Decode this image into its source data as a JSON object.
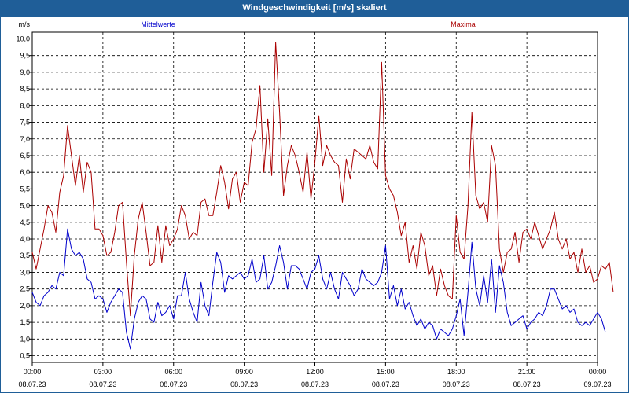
{
  "window": {
    "title": "Windgeschwindigkeit [m/s] skaliert"
  },
  "chart_data": {
    "type": "line",
    "title": "Windgeschwindigkeit [m/s] skaliert",
    "ylabel": "m/s",
    "ylim": [
      0.3,
      10.2
    ],
    "yticks": [
      "0,5",
      "1,0",
      "1,5",
      "2,0",
      "2,5",
      "3,0",
      "3,5",
      "4,0",
      "4,5",
      "5,0",
      "5,5",
      "6,0",
      "6,5",
      "7,0",
      "7,5",
      "8,0",
      "8,5",
      "9,0",
      "9,5",
      "10,0"
    ],
    "xlim_hours": [
      0,
      24
    ],
    "xticks": [
      {
        "time": "00:00",
        "date": "08.07.23"
      },
      {
        "time": "03:00",
        "date": "08.07.23"
      },
      {
        "time": "06:00",
        "date": "08.07.23"
      },
      {
        "time": "09:00",
        "date": "08.07.23"
      },
      {
        "time": "12:00",
        "date": "08.07.23"
      },
      {
        "time": "15:00",
        "date": "08.07.23"
      },
      {
        "time": "18:00",
        "date": "08.07.23"
      },
      {
        "time": "21:00",
        "date": "08.07.23"
      },
      {
        "time": "00:00",
        "date": "09.07.23"
      }
    ],
    "grid": true,
    "interval_minutes": 10,
    "series": [
      {
        "name": "Mittelwerte",
        "color": "#0000cc",
        "values": [
          2.4,
          2.1,
          2.0,
          2.3,
          2.4,
          2.6,
          2.5,
          3.0,
          2.9,
          4.3,
          3.7,
          3.5,
          3.6,
          3.4,
          2.8,
          2.7,
          2.2,
          2.3,
          2.2,
          1.8,
          2.1,
          2.3,
          2.5,
          2.4,
          1.2,
          0.7,
          1.6,
          2.1,
          2.3,
          2.2,
          1.6,
          1.5,
          2.1,
          1.7,
          1.8,
          2.0,
          1.6,
          2.3,
          2.3,
          3.0,
          2.2,
          1.8,
          1.5,
          2.7,
          2.0,
          1.7,
          2.7,
          3.6,
          3.3,
          2.4,
          2.9,
          2.8,
          2.9,
          3.0,
          2.8,
          2.9,
          3.4,
          2.7,
          2.8,
          3.5,
          2.5,
          2.7,
          3.2,
          3.8,
          3.3,
          2.5,
          3.2,
          3.2,
          3.1,
          2.8,
          2.5,
          3.0,
          3.1,
          3.5,
          2.8,
          2.5,
          3.0,
          2.5,
          2.2,
          3.0,
          2.8,
          2.6,
          2.3,
          2.5,
          3.1,
          2.8,
          2.7,
          2.6,
          2.7,
          3.0,
          3.8,
          2.2,
          2.6,
          2.0,
          2.5,
          1.9,
          2.1,
          1.7,
          1.4,
          1.6,
          1.3,
          1.5,
          1.4,
          1.0,
          1.3,
          1.2,
          1.1,
          1.3,
          1.7,
          2.2,
          1.1,
          2.4,
          3.9,
          2.5,
          2.0,
          2.9,
          2.1,
          3.4,
          1.8,
          3.2,
          2.7,
          1.8,
          1.4,
          1.5,
          1.6,
          1.7,
          1.3,
          1.5,
          1.6,
          1.8,
          1.7,
          2.0,
          2.5,
          2.5,
          2.2,
          1.9,
          2.0,
          1.8,
          1.9,
          1.5,
          1.4,
          1.5,
          1.4,
          1.6,
          1.8,
          1.6,
          1.2
        ]
      },
      {
        "name": "Maxima",
        "color": "#aa0000",
        "values": [
          3.6,
          3.1,
          3.7,
          4.3,
          5.0,
          4.8,
          4.2,
          5.4,
          5.9,
          7.4,
          6.5,
          5.6,
          6.5,
          5.4,
          6.3,
          6.0,
          4.3,
          4.3,
          4.1,
          3.5,
          3.6,
          4.2,
          5.0,
          5.1,
          3.3,
          1.7,
          3.5,
          4.6,
          5.1,
          4.2,
          3.2,
          3.3,
          4.4,
          3.3,
          4.4,
          3.8,
          4.0,
          4.3,
          5.0,
          4.7,
          4.0,
          4.2,
          4.1,
          5.1,
          5.2,
          4.7,
          4.7,
          5.4,
          6.2,
          5.7,
          4.9,
          5.8,
          6.0,
          5.1,
          5.7,
          5.6,
          6.9,
          7.3,
          8.6,
          6.0,
          7.6,
          5.9,
          9.9,
          7.8,
          5.3,
          6.2,
          6.8,
          6.5,
          6.0,
          5.4,
          6.6,
          5.2,
          6.3,
          7.7,
          6.2,
          6.8,
          6.5,
          6.3,
          6.2,
          5.1,
          6.4,
          5.8,
          6.7,
          6.6,
          6.5,
          6.4,
          6.8,
          6.3,
          6.1,
          9.3,
          5.9,
          5.5,
          5.3,
          4.8,
          4.1,
          4.5,
          3.3,
          3.8,
          3.1,
          4.2,
          3.8,
          2.9,
          3.2,
          2.3,
          3.1,
          2.6,
          2.3,
          2.2,
          4.7,
          3.6,
          3.4,
          5.0,
          7.8,
          5.3,
          4.9,
          5.1,
          4.5,
          6.8,
          6.2,
          3.7,
          3.0,
          3.6,
          3.7,
          4.2,
          3.3,
          4.2,
          4.3,
          4.0,
          4.5,
          4.1,
          3.7,
          4.0,
          4.3,
          4.8,
          4.0,
          3.7,
          4.0,
          3.4,
          3.6,
          3.0,
          3.7,
          3.0,
          3.2,
          2.7,
          2.8,
          3.2,
          3.1,
          3.3,
          2.4
        ]
      }
    ]
  }
}
